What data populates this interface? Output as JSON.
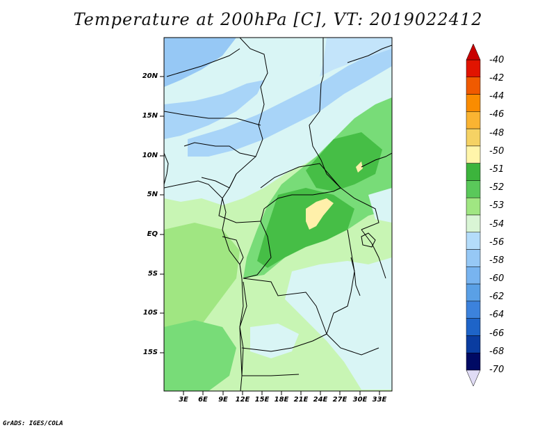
{
  "title": "Temperature at 200hPa [C], VT: 2019022412",
  "credit": "GrADS: IGES/COLA",
  "map": {
    "lat_labels": [
      "20N",
      "15N",
      "10N",
      "5N",
      "EQ",
      "5S",
      "10S",
      "15S"
    ],
    "lon_labels": [
      "3E",
      "6E",
      "9E",
      "12E",
      "15E",
      "18E",
      "21E",
      "24E",
      "27E",
      "30E",
      "33E"
    ]
  },
  "colorbar": {
    "labels": [
      "-40",
      "-42",
      "-44",
      "-46",
      "-48",
      "-50",
      "-51",
      "-52",
      "-53",
      "-54",
      "-56",
      "-58",
      "-60",
      "-62",
      "-64",
      "-66",
      "-68",
      "-70"
    ],
    "colors": [
      "#c80000",
      "#e11400",
      "#f05a00",
      "#fa8c00",
      "#fab432",
      "#f5d264",
      "#fff5aa",
      "#3cb43c",
      "#5ac85a",
      "#a0e682",
      "#d9f5d5",
      "#b4dcfa",
      "#96c8f5",
      "#78b4f0",
      "#5aa0e6",
      "#3c82dc",
      "#1e64c8",
      "#0a3ca0",
      "#000a64",
      "#e0dcf5"
    ]
  },
  "legend_colors": {
    "cold_land": "#c3e4fa",
    "medium_blue": "#96c8f5",
    "light_green": "#c8f5b4",
    "green": "#78dc78",
    "dark_green": "#46be46",
    "yellow": "#fff0aa"
  }
}
